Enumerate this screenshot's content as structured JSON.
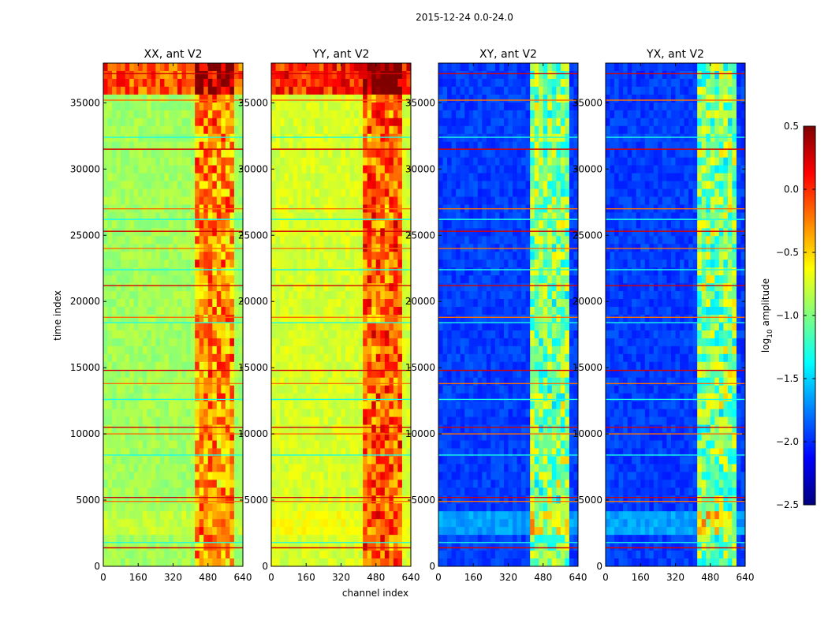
{
  "chart_data": {
    "type": "heatmap",
    "title": "2015-12-24 0.0-24.0",
    "xlabel": "channel index",
    "ylabel": "time index",
    "xlim": [
      0,
      640
    ],
    "ylim": [
      0,
      38000
    ],
    "x_ticks": [
      0,
      160,
      320,
      480,
      640
    ],
    "y_ticks": [
      0,
      5000,
      10000,
      15000,
      20000,
      25000,
      30000,
      35000
    ],
    "panels": [
      {
        "name": "XX, ant V2",
        "base_level": -0.9
      },
      {
        "name": "YY, ant V2",
        "base_level": -0.75
      },
      {
        "name": "XY, ant V2",
        "base_level": -1.95
      },
      {
        "name": "YX, ant V2",
        "base_level": -1.95
      }
    ],
    "rfi_channel_band": [
      410,
      600
    ],
    "colorbar": {
      "label": "log10 amplitude",
      "label_main": "log",
      "label_sub": "10",
      "label_rest": " amplitude",
      "range": [
        -2.5,
        0.5
      ],
      "ticks": [
        0.5,
        0.0,
        -0.5,
        -1.0,
        -1.5,
        -2.0,
        -2.5
      ],
      "tick_labels": [
        "0.5",
        "0.0",
        "−0.5",
        "−1.0",
        "−1.5",
        "−2.0",
        "−2.5"
      ],
      "colormap": "jet"
    }
  }
}
